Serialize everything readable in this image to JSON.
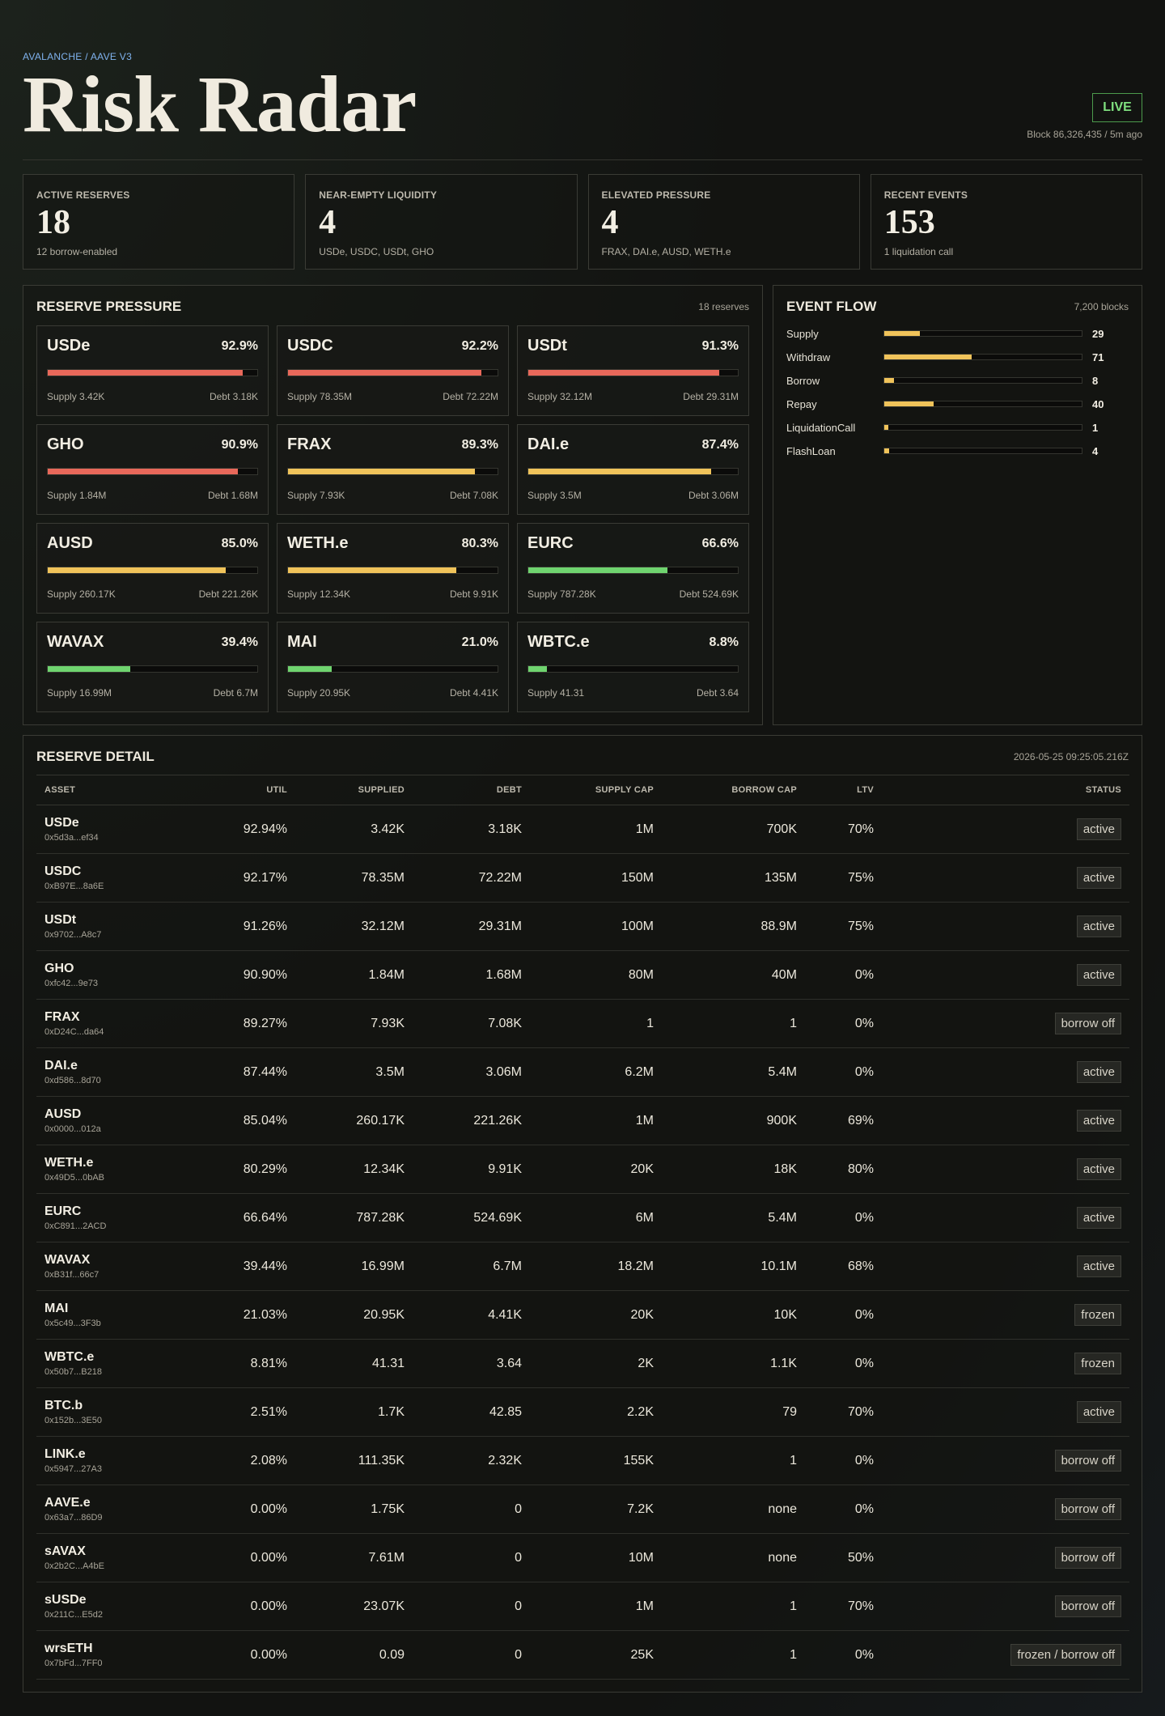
{
  "header": {
    "eyebrow": "AVALANCHE / AAVE V3",
    "title": "Risk Radar",
    "live_label": "LIVE",
    "block_info": "Block 86,326,435 / 5m ago"
  },
  "stats": [
    {
      "label": "ACTIVE RESERVES",
      "value": "18",
      "sub": "12 borrow-enabled"
    },
    {
      "label": "NEAR-EMPTY LIQUIDITY",
      "value": "4",
      "sub": "USDe, USDC, USDt, GHO"
    },
    {
      "label": "ELEVATED PRESSURE",
      "value": "4",
      "sub": "FRAX, DAI.e, AUSD, WETH.e"
    },
    {
      "label": "RECENT EVENTS",
      "value": "153",
      "sub": "1 liquidation call"
    }
  ],
  "pressure": {
    "title": "RESERVE PRESSURE",
    "meta": "18 reserves",
    "colors": {
      "high": "#e8685a",
      "mid": "#f0c35a",
      "low": "#6fd46f"
    },
    "cards": [
      {
        "name": "USDe",
        "pct": "92.9%",
        "fill": 0.929,
        "level": "high",
        "supply": "Supply 3.42K",
        "debt": "Debt 3.18K"
      },
      {
        "name": "USDC",
        "pct": "92.2%",
        "fill": 0.922,
        "level": "high",
        "supply": "Supply 78.35M",
        "debt": "Debt 72.22M"
      },
      {
        "name": "USDt",
        "pct": "91.3%",
        "fill": 0.913,
        "level": "high",
        "supply": "Supply 32.12M",
        "debt": "Debt 29.31M"
      },
      {
        "name": "GHO",
        "pct": "90.9%",
        "fill": 0.909,
        "level": "high",
        "supply": "Supply 1.84M",
        "debt": "Debt 1.68M"
      },
      {
        "name": "FRAX",
        "pct": "89.3%",
        "fill": 0.893,
        "level": "mid",
        "supply": "Supply 7.93K",
        "debt": "Debt 7.08K"
      },
      {
        "name": "DAI.e",
        "pct": "87.4%",
        "fill": 0.874,
        "level": "mid",
        "supply": "Supply 3.5M",
        "debt": "Debt 3.06M"
      },
      {
        "name": "AUSD",
        "pct": "85.0%",
        "fill": 0.85,
        "level": "mid",
        "supply": "Supply 260.17K",
        "debt": "Debt 221.26K"
      },
      {
        "name": "WETH.e",
        "pct": "80.3%",
        "fill": 0.803,
        "level": "mid",
        "supply": "Supply 12.34K",
        "debt": "Debt 9.91K"
      },
      {
        "name": "EURC",
        "pct": "66.6%",
        "fill": 0.666,
        "level": "low",
        "supply": "Supply 787.28K",
        "debt": "Debt 524.69K"
      },
      {
        "name": "WAVAX",
        "pct": "39.4%",
        "fill": 0.394,
        "level": "low",
        "supply": "Supply 16.99M",
        "debt": "Debt 6.7M"
      },
      {
        "name": "MAI",
        "pct": "21.0%",
        "fill": 0.21,
        "level": "low",
        "supply": "Supply 20.95K",
        "debt": "Debt 4.41K"
      },
      {
        "name": "WBTC.e",
        "pct": "8.8%",
        "fill": 0.088,
        "level": "low",
        "supply": "Supply 41.31",
        "debt": "Debt 3.64"
      }
    ]
  },
  "events": {
    "title": "EVENT FLOW",
    "meta": "7,200 blocks",
    "max": 160,
    "items": [
      {
        "label": "Supply",
        "count": "29",
        "value": 29
      },
      {
        "label": "Withdraw",
        "count": "71",
        "value": 71
      },
      {
        "label": "Borrow",
        "count": "8",
        "value": 8
      },
      {
        "label": "Repay",
        "count": "40",
        "value": 40
      },
      {
        "label": "LiquidationCall",
        "count": "1",
        "value": 1
      },
      {
        "label": "FlashLoan",
        "count": "4",
        "value": 4
      }
    ]
  },
  "detail": {
    "title": "RESERVE DETAIL",
    "meta": "2026-05-25 09:25:05.216Z",
    "columns": [
      "ASSET",
      "UTIL",
      "SUPPLIED",
      "DEBT",
      "SUPPLY CAP",
      "BORROW CAP",
      "LTV",
      "STATUS"
    ],
    "rows": [
      {
        "asset": "USDe",
        "addr": "0x5d3a...ef34",
        "util": "92.94%",
        "supplied": "3.42K",
        "debt": "3.18K",
        "supply_cap": "1M",
        "borrow_cap": "700K",
        "ltv": "70%",
        "status": "active"
      },
      {
        "asset": "USDC",
        "addr": "0xB97E...8a6E",
        "util": "92.17%",
        "supplied": "78.35M",
        "debt": "72.22M",
        "supply_cap": "150M",
        "borrow_cap": "135M",
        "ltv": "75%",
        "status": "active"
      },
      {
        "asset": "USDt",
        "addr": "0x9702...A8c7",
        "util": "91.26%",
        "supplied": "32.12M",
        "debt": "29.31M",
        "supply_cap": "100M",
        "borrow_cap": "88.9M",
        "ltv": "75%",
        "status": "active"
      },
      {
        "asset": "GHO",
        "addr": "0xfc42...9e73",
        "util": "90.90%",
        "supplied": "1.84M",
        "debt": "1.68M",
        "supply_cap": "80M",
        "borrow_cap": "40M",
        "ltv": "0%",
        "status": "active"
      },
      {
        "asset": "FRAX",
        "addr": "0xD24C...da64",
        "util": "89.27%",
        "supplied": "7.93K",
        "debt": "7.08K",
        "supply_cap": "1",
        "borrow_cap": "1",
        "ltv": "0%",
        "status": "borrow off"
      },
      {
        "asset": "DAI.e",
        "addr": "0xd586...8d70",
        "util": "87.44%",
        "supplied": "3.5M",
        "debt": "3.06M",
        "supply_cap": "6.2M",
        "borrow_cap": "5.4M",
        "ltv": "0%",
        "status": "active"
      },
      {
        "asset": "AUSD",
        "addr": "0x0000...012a",
        "util": "85.04%",
        "supplied": "260.17K",
        "debt": "221.26K",
        "supply_cap": "1M",
        "borrow_cap": "900K",
        "ltv": "69%",
        "status": "active"
      },
      {
        "asset": "WETH.e",
        "addr": "0x49D5...0bAB",
        "util": "80.29%",
        "supplied": "12.34K",
        "debt": "9.91K",
        "supply_cap": "20K",
        "borrow_cap": "18K",
        "ltv": "80%",
        "status": "active"
      },
      {
        "asset": "EURC",
        "addr": "0xC891...2ACD",
        "util": "66.64%",
        "supplied": "787.28K",
        "debt": "524.69K",
        "supply_cap": "6M",
        "borrow_cap": "5.4M",
        "ltv": "0%",
        "status": "active"
      },
      {
        "asset": "WAVAX",
        "addr": "0xB31f...66c7",
        "util": "39.44%",
        "supplied": "16.99M",
        "debt": "6.7M",
        "supply_cap": "18.2M",
        "borrow_cap": "10.1M",
        "ltv": "68%",
        "status": "active"
      },
      {
        "asset": "MAI",
        "addr": "0x5c49...3F3b",
        "util": "21.03%",
        "supplied": "20.95K",
        "debt": "4.41K",
        "supply_cap": "20K",
        "borrow_cap": "10K",
        "ltv": "0%",
        "status": "frozen"
      },
      {
        "asset": "WBTC.e",
        "addr": "0x50b7...B218",
        "util": "8.81%",
        "supplied": "41.31",
        "debt": "3.64",
        "supply_cap": "2K",
        "borrow_cap": "1.1K",
        "ltv": "0%",
        "status": "frozen"
      },
      {
        "asset": "BTC.b",
        "addr": "0x152b...3E50",
        "util": "2.51%",
        "supplied": "1.7K",
        "debt": "42.85",
        "supply_cap": "2.2K",
        "borrow_cap": "79",
        "ltv": "70%",
        "status": "active"
      },
      {
        "asset": "LINK.e",
        "addr": "0x5947...27A3",
        "util": "2.08%",
        "supplied": "111.35K",
        "debt": "2.32K",
        "supply_cap": "155K",
        "borrow_cap": "1",
        "ltv": "0%",
        "status": "borrow off"
      },
      {
        "asset": "AAVE.e",
        "addr": "0x63a7...86D9",
        "util": "0.00%",
        "supplied": "1.75K",
        "debt": "0",
        "supply_cap": "7.2K",
        "borrow_cap": "none",
        "ltv": "0%",
        "status": "borrow off"
      },
      {
        "asset": "sAVAX",
        "addr": "0x2b2C...A4bE",
        "util": "0.00%",
        "supplied": "7.61M",
        "debt": "0",
        "supply_cap": "10M",
        "borrow_cap": "none",
        "ltv": "50%",
        "status": "borrow off"
      },
      {
        "asset": "sUSDe",
        "addr": "0x211C...E5d2",
        "util": "0.00%",
        "supplied": "23.07K",
        "debt": "0",
        "supply_cap": "1M",
        "borrow_cap": "1",
        "ltv": "70%",
        "status": "borrow off"
      },
      {
        "asset": "wrsETH",
        "addr": "0x7bFd...7FF0",
        "util": "0.00%",
        "supplied": "0.09",
        "debt": "0",
        "supply_cap": "25K",
        "borrow_cap": "1",
        "ltv": "0%",
        "status": "frozen / borrow off"
      }
    ]
  }
}
